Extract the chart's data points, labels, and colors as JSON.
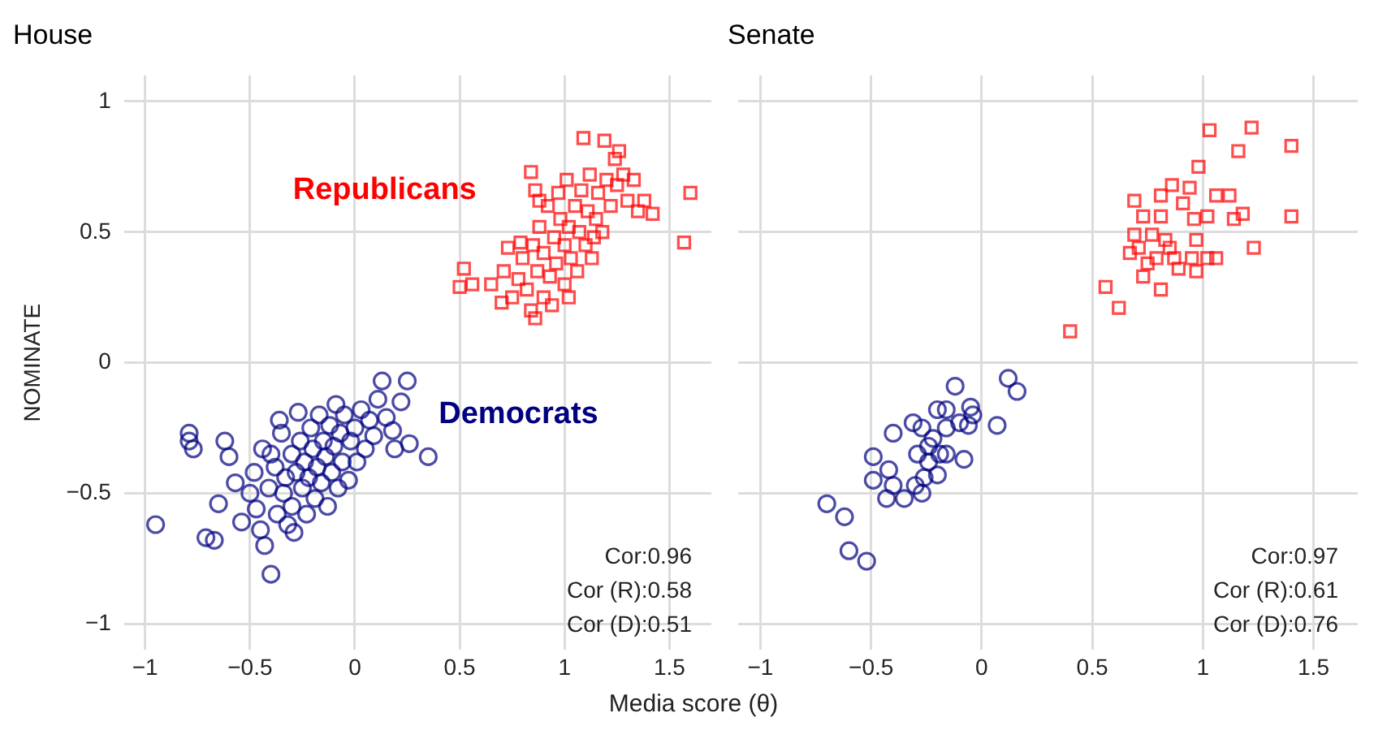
{
  "chart_data": [
    {
      "type": "scatter",
      "title": "House",
      "xlabel": "Media score (θ)",
      "ylabel": "NOMINATE",
      "xlim": [
        -1.1,
        1.7
      ],
      "ylim": [
        -1.1,
        1.1
      ],
      "xticks": [
        -1,
        -0.5,
        0,
        0.5,
        1,
        1.5
      ],
      "yticks": [
        -1,
        -0.5,
        0,
        0.5,
        1
      ],
      "grid": true,
      "legend": false,
      "annotations": [
        "Cor:0.96",
        "Cor (R):0.58",
        "Cor (D):0.51"
      ],
      "series": [
        {
          "name": "Republicans",
          "color": "#ff0000",
          "marker": "square",
          "x": [
            1.6,
            1.57,
            1.09,
            1.19,
            1.24,
            1.26,
            1.38,
            1.42,
            0.52,
            0.5,
            0.56,
            0.86,
            0.84,
            0.84,
            0.86,
            0.71,
            0.7,
            0.65,
            0.75,
            0.78,
            0.8,
            0.82,
            0.85,
            0.87,
            0.88,
            0.9,
            0.9,
            0.92,
            0.93,
            0.95,
            0.96,
            0.97,
            0.98,
            1.0,
            1.0,
            1.01,
            1.02,
            1.03,
            1.05,
            1.06,
            1.07,
            1.08,
            1.1,
            1.11,
            1.12,
            1.13,
            1.15,
            1.16,
            1.18,
            1.2,
            1.22,
            1.25,
            1.28,
            1.3,
            1.33,
            1.35,
            1.02,
            0.94,
            0.88,
            1.14,
            0.79,
            0.73
          ],
          "values": [
            0.65,
            0.46,
            0.86,
            0.85,
            0.78,
            0.81,
            0.62,
            0.57,
            0.36,
            0.29,
            0.3,
            0.17,
            0.2,
            0.73,
            0.66,
            0.35,
            0.23,
            0.3,
            0.25,
            0.32,
            0.4,
            0.28,
            0.45,
            0.35,
            0.52,
            0.25,
            0.42,
            0.6,
            0.33,
            0.48,
            0.38,
            0.65,
            0.55,
            0.3,
            0.45,
            0.7,
            0.52,
            0.4,
            0.6,
            0.35,
            0.5,
            0.66,
            0.45,
            0.58,
            0.72,
            0.4,
            0.55,
            0.65,
            0.5,
            0.7,
            0.6,
            0.68,
            0.72,
            0.62,
            0.7,
            0.58,
            0.25,
            0.22,
            0.62,
            0.48,
            0.46,
            0.44
          ]
        },
        {
          "name": "Democrats",
          "color": "#000080",
          "marker": "circle",
          "x": [
            -0.95,
            -0.79,
            -0.79,
            -0.77,
            -0.71,
            -0.67,
            -0.62,
            -0.6,
            -0.65,
            -0.57,
            -0.54,
            -0.5,
            -0.48,
            -0.47,
            -0.45,
            -0.43,
            -0.4,
            -0.41,
            -0.4,
            -0.38,
            -0.37,
            -0.36,
            -0.35,
            -0.34,
            -0.33,
            -0.32,
            -0.3,
            -0.3,
            -0.28,
            -0.27,
            -0.26,
            -0.25,
            -0.24,
            -0.23,
            -0.22,
            -0.21,
            -0.2,
            -0.19,
            -0.18,
            -0.17,
            -0.16,
            -0.15,
            -0.14,
            -0.13,
            -0.12,
            -0.11,
            -0.1,
            -0.09,
            -0.08,
            -0.07,
            -0.06,
            -0.05,
            -0.03,
            -0.02,
            0,
            0.01,
            0.03,
            0.05,
            0.07,
            0.09,
            0.11,
            0.13,
            0.15,
            0.19,
            0.22,
            0.25,
            0.26,
            0.35,
            0.18,
            -0.44,
            -0.29
          ],
          "values": [
            -0.62,
            -0.27,
            -0.3,
            -0.33,
            -0.67,
            -0.68,
            -0.3,
            -0.36,
            -0.54,
            -0.46,
            -0.61,
            -0.5,
            -0.42,
            -0.56,
            -0.64,
            -0.7,
            -0.81,
            -0.48,
            -0.35,
            -0.4,
            -0.58,
            -0.22,
            -0.27,
            -0.5,
            -0.44,
            -0.62,
            -0.35,
            -0.55,
            -0.42,
            -0.19,
            -0.3,
            -0.48,
            -0.38,
            -0.58,
            -0.44,
            -0.25,
            -0.33,
            -0.52,
            -0.4,
            -0.2,
            -0.46,
            -0.3,
            -0.36,
            -0.55,
            -0.24,
            -0.42,
            -0.32,
            -0.16,
            -0.48,
            -0.27,
            -0.38,
            -0.2,
            -0.45,
            -0.3,
            -0.25,
            -0.38,
            -0.18,
            -0.33,
            -0.22,
            -0.28,
            -0.14,
            -0.07,
            -0.21,
            -0.33,
            -0.15,
            -0.07,
            -0.31,
            -0.36,
            -0.26,
            -0.33,
            -0.65
          ]
        }
      ]
    },
    {
      "type": "scatter",
      "title": "Senate",
      "xlim": [
        -1.1,
        1.7
      ],
      "ylim": [
        -1.1,
        1.1
      ],
      "xticks": [
        -1,
        -0.5,
        0,
        0.5,
        1,
        1.5
      ],
      "yticks": [
        -1,
        -0.5,
        0,
        0.5,
        1
      ],
      "tick_labels": "x",
      "grid": true,
      "legend": false,
      "annotations": [
        "Cor:0.97",
        "Cor (R):0.61",
        "Cor (D):0.76"
      ],
      "series": [
        {
          "color": "#ff0000",
          "marker": "square",
          "x": [
            0.4,
            0.62,
            0.56,
            0.81,
            1.03,
            1.22,
            1.16,
            1.4,
            1.4,
            0.98,
            1.23,
            0.69,
            0.86,
            0.94,
            0.81,
            1.06,
            1.12,
            1.18,
            1.14,
            1.02,
            0.96,
            0.91,
            0.73,
            0.81,
            0.69,
            0.97,
            0.97,
            1.06,
            1.02,
            0.73,
            0.89,
            0.67,
            0.75,
            0.83,
            0.85,
            0.79,
            0.87,
            0.95,
            0.71,
            0.77
          ],
          "values": [
            0.12,
            0.21,
            0.29,
            0.28,
            0.89,
            0.9,
            0.81,
            0.83,
            0.56,
            0.75,
            0.44,
            0.62,
            0.68,
            0.67,
            0.64,
            0.64,
            0.64,
            0.57,
            0.55,
            0.56,
            0.55,
            0.61,
            0.56,
            0.56,
            0.49,
            0.47,
            0.35,
            0.4,
            0.4,
            0.33,
            0.36,
            0.42,
            0.38,
            0.47,
            0.44,
            0.4,
            0.4,
            0.4,
            0.44,
            0.49
          ]
        },
        {
          "color": "#000080",
          "marker": "circle",
          "x": [
            -0.7,
            -0.62,
            -0.6,
            -0.52,
            -0.49,
            -0.49,
            -0.42,
            -0.4,
            -0.4,
            -0.43,
            -0.35,
            -0.27,
            -0.31,
            -0.12,
            0.12,
            0.16,
            0.07,
            -0.05,
            -0.04,
            -0.08,
            -0.2,
            -0.2,
            -0.16,
            -0.06,
            -0.29,
            -0.24,
            -0.19,
            -0.27,
            -0.3,
            -0.26,
            -0.16,
            -0.22,
            -0.24,
            -0.16,
            -0.1
          ],
          "values": [
            -0.54,
            -0.59,
            -0.72,
            -0.76,
            -0.36,
            -0.45,
            -0.41,
            -0.27,
            -0.47,
            -0.52,
            -0.52,
            -0.5,
            -0.23,
            -0.09,
            -0.06,
            -0.11,
            -0.24,
            -0.17,
            -0.2,
            -0.37,
            -0.43,
            -0.18,
            -0.18,
            -0.24,
            -0.35,
            -0.32,
            -0.35,
            -0.25,
            -0.47,
            -0.44,
            -0.25,
            -0.29,
            -0.38,
            -0.35,
            -0.23
          ]
        }
      ]
    }
  ]
}
